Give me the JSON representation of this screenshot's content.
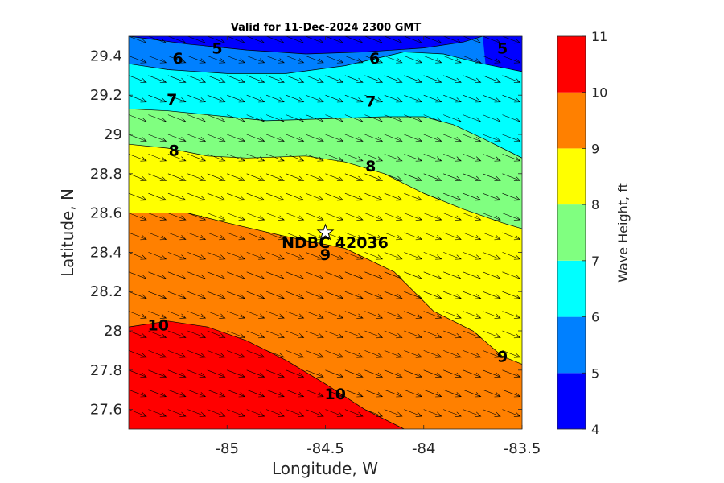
{
  "chart_data": {
    "type": "contour",
    "title": "Valid for 11-Dec-2024 2300 GMT",
    "xlabel": "Longitude, W",
    "ylabel": "Latitude, N",
    "xlim": [
      -85.5,
      -83.5
    ],
    "ylim": [
      27.5,
      29.5
    ],
    "x_ticks": [
      -85,
      -84.5,
      -84,
      -83.5
    ],
    "y_ticks": [
      27.6,
      27.8,
      28,
      28.2,
      28.4,
      28.6,
      28.8,
      29,
      29.2,
      29.4
    ],
    "colorbar": {
      "label": "Wave Height, ft",
      "ticks": [
        4,
        5,
        6,
        7,
        8,
        9,
        10,
        11
      ],
      "levels": [
        {
          "min": 4,
          "max": 5,
          "color": "#0000ff"
        },
        {
          "min": 5,
          "max": 6,
          "color": "#0080ff"
        },
        {
          "min": 6,
          "max": 7,
          "color": "#00ffff"
        },
        {
          "min": 7,
          "max": 8,
          "color": "#80ff80"
        },
        {
          "min": 8,
          "max": 9,
          "color": "#ffff00"
        },
        {
          "min": 9,
          "max": 10,
          "color": "#ff8000"
        },
        {
          "min": 10,
          "max": 11,
          "color": "#ff0000"
        }
      ]
    },
    "contours": [
      {
        "level": 5,
        "points": [
          [
            -85.5,
            29.5
          ],
          [
            -85.2,
            29.46
          ],
          [
            -84.9,
            29.43
          ],
          [
            -84.6,
            29.41
          ],
          [
            -84.3,
            29.42
          ],
          [
            -84.0,
            29.44
          ],
          [
            -83.8,
            29.47
          ],
          [
            -83.7,
            29.5
          ]
        ]
      },
      {
        "level": 6,
        "points": [
          [
            -85.5,
            29.36
          ],
          [
            -85.3,
            29.33
          ],
          [
            -85.0,
            29.31
          ],
          [
            -84.7,
            29.31
          ],
          [
            -84.4,
            29.35
          ],
          [
            -84.1,
            29.42
          ],
          [
            -83.9,
            29.41
          ],
          [
            -83.7,
            29.36
          ],
          [
            -83.5,
            29.32
          ]
        ]
      },
      {
        "level": 7,
        "points": [
          [
            -85.5,
            29.13
          ],
          [
            -85.3,
            29.12
          ],
          [
            -85.0,
            29.09
          ],
          [
            -84.8,
            29.07
          ],
          [
            -84.5,
            29.08
          ],
          [
            -84.2,
            29.09
          ],
          [
            -84.0,
            29.09
          ],
          [
            -83.85,
            29.05
          ],
          [
            -83.7,
            28.98
          ],
          [
            -83.5,
            28.88
          ]
        ]
      },
      {
        "level": 8,
        "points": [
          [
            -85.5,
            28.95
          ],
          [
            -85.3,
            28.93
          ],
          [
            -85.1,
            28.89
          ],
          [
            -84.9,
            28.88
          ],
          [
            -84.6,
            28.89
          ],
          [
            -84.4,
            28.86
          ],
          [
            -84.2,
            28.8
          ],
          [
            -84.0,
            28.7
          ],
          [
            -83.8,
            28.62
          ],
          [
            -83.6,
            28.55
          ],
          [
            -83.5,
            28.52
          ]
        ]
      },
      {
        "level": 9,
        "points": [
          [
            -85.5,
            28.6
          ],
          [
            -85.2,
            28.6
          ],
          [
            -85.0,
            28.55
          ],
          [
            -84.7,
            28.48
          ],
          [
            -84.4,
            28.42
          ],
          [
            -84.15,
            28.3
          ],
          [
            -83.95,
            28.1
          ],
          [
            -83.75,
            28.0
          ],
          [
            -83.6,
            27.87
          ],
          [
            -83.5,
            27.83
          ]
        ]
      },
      {
        "level": 10,
        "points": [
          [
            -85.5,
            28.02
          ],
          [
            -85.3,
            28.05
          ],
          [
            -85.1,
            28.02
          ],
          [
            -84.9,
            27.95
          ],
          [
            -84.7,
            27.85
          ],
          [
            -84.5,
            27.73
          ],
          [
            -84.3,
            27.6
          ],
          [
            -84.1,
            27.5
          ]
        ]
      }
    ],
    "contour_labels": [
      {
        "text": "5",
        "x": -85.05,
        "y": 29.44
      },
      {
        "text": "6",
        "x": -85.25,
        "y": 29.39
      },
      {
        "text": "6",
        "x": -84.25,
        "y": 29.39
      },
      {
        "text": "5",
        "x": -83.6,
        "y": 29.44
      },
      {
        "text": "7",
        "x": -85.28,
        "y": 29.18
      },
      {
        "text": "7",
        "x": -84.27,
        "y": 29.17
      },
      {
        "text": "8",
        "x": -85.27,
        "y": 28.92
      },
      {
        "text": "8",
        "x": -84.27,
        "y": 28.84
      },
      {
        "text": "9",
        "x": -84.5,
        "y": 28.39
      },
      {
        "text": "10",
        "x": -85.35,
        "y": 28.03
      },
      {
        "text": "10",
        "x": -84.45,
        "y": 27.68
      },
      {
        "text": "9",
        "x": -83.6,
        "y": 27.87
      }
    ],
    "vectors": {
      "direction": "toward east-southeast",
      "dx": 0.09,
      "dy": -0.035
    },
    "station": {
      "label": "NDBC 42036",
      "lon": -84.5,
      "lat": 28.5
    }
  }
}
